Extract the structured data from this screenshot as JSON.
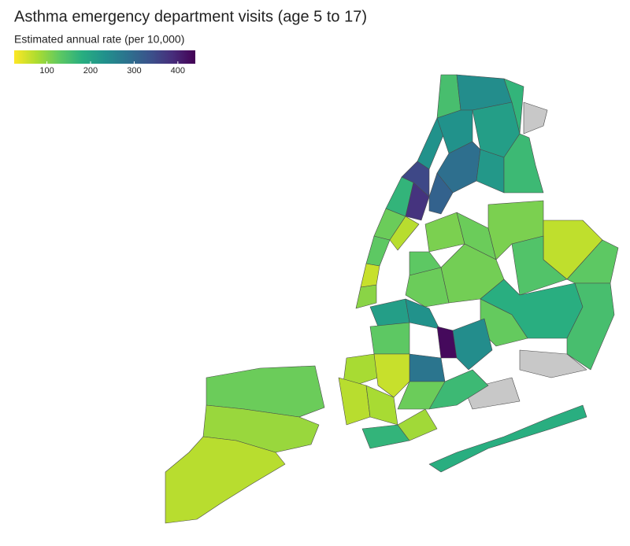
{
  "chart_data": {
    "type": "choropleth",
    "title": "Asthma emergency department visits (age 5 to 17)",
    "legend_title": "Estimated annual rate (per 10,000)",
    "colormap": "viridis_reversed",
    "missing_color": "#c8c8c8",
    "lim": [
      25,
      440
    ],
    "ticks": [
      100,
      200,
      300,
      400
    ],
    "values": [
      120,
      90,
      70,
      100,
      60,
      130,
      120,
      70,
      170,
      380,
      350,
      230,
      150,
      240,
      170,
      230,
      210,
      290,
      310,
      220,
      160,
      null,
      110,
      130,
      120,
      110,
      65,
      140,
      130,
      115,
      180,
      150,
      120,
      125,
      180,
      null,
      null,
      210,
      230,
      430,
      240,
      280,
      130,
      80,
      60,
      70,
      80,
      160,
      170,
      85,
      120
    ]
  }
}
